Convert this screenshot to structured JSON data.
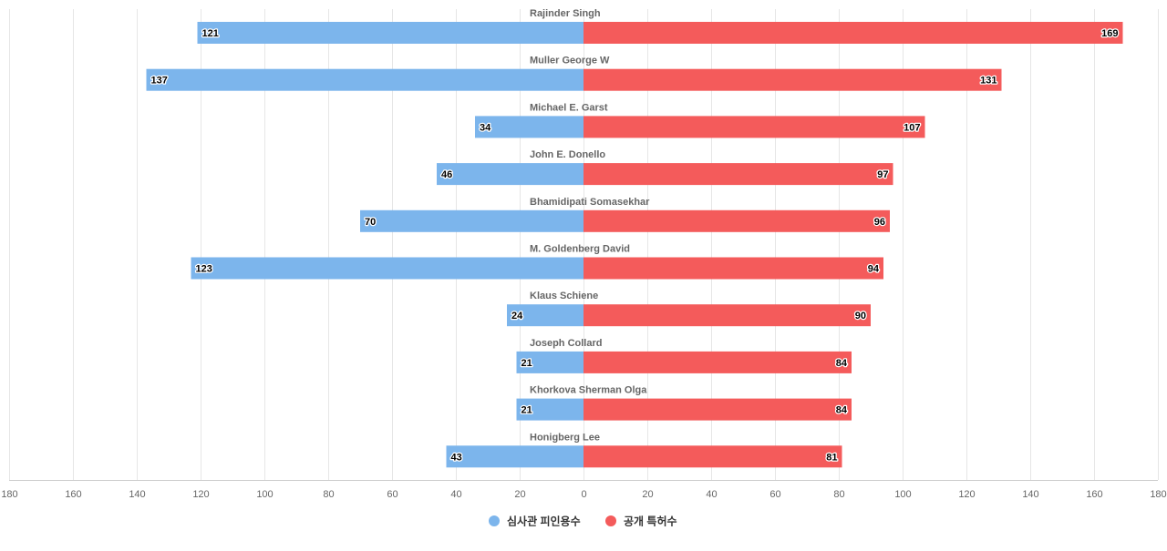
{
  "chart_data": {
    "type": "bar",
    "orientation": "horizontal-diverging",
    "categories": [
      "Rajinder Singh",
      "Muller George W",
      "Michael E. Garst",
      "John E. Donello",
      "Bhamidipati Somasekhar",
      "M. Goldenberg David",
      "Klaus Schiene",
      "Joseph Collard",
      "Khorkova Sherman Olga",
      "Honigberg Lee"
    ],
    "series": [
      {
        "name": "심사관 피인용수",
        "color": "#7cb5ec",
        "side": "left",
        "values": [
          121,
          137,
          34,
          46,
          70,
          123,
          24,
          21,
          21,
          43
        ]
      },
      {
        "name": "공개 특허수",
        "color": "#f45b5b",
        "side": "right",
        "values": [
          169,
          131,
          107,
          97,
          96,
          94,
          90,
          84,
          84,
          81
        ]
      }
    ],
    "xlim": [
      -180,
      180
    ],
    "xticks": [
      -180,
      -160,
      -140,
      -120,
      -100,
      -80,
      -60,
      -40,
      -20,
      0,
      20,
      40,
      60,
      80,
      100,
      120,
      140,
      160,
      180
    ],
    "tick_labels": [
      "180",
      "160",
      "140",
      "120",
      "100",
      "80",
      "60",
      "40",
      "20",
      "0",
      "20",
      "40",
      "60",
      "80",
      "100",
      "120",
      "140",
      "160",
      "180"
    ],
    "grid": true,
    "legend_position": "bottom-center",
    "title": "",
    "xlabel": "",
    "ylabel": ""
  }
}
